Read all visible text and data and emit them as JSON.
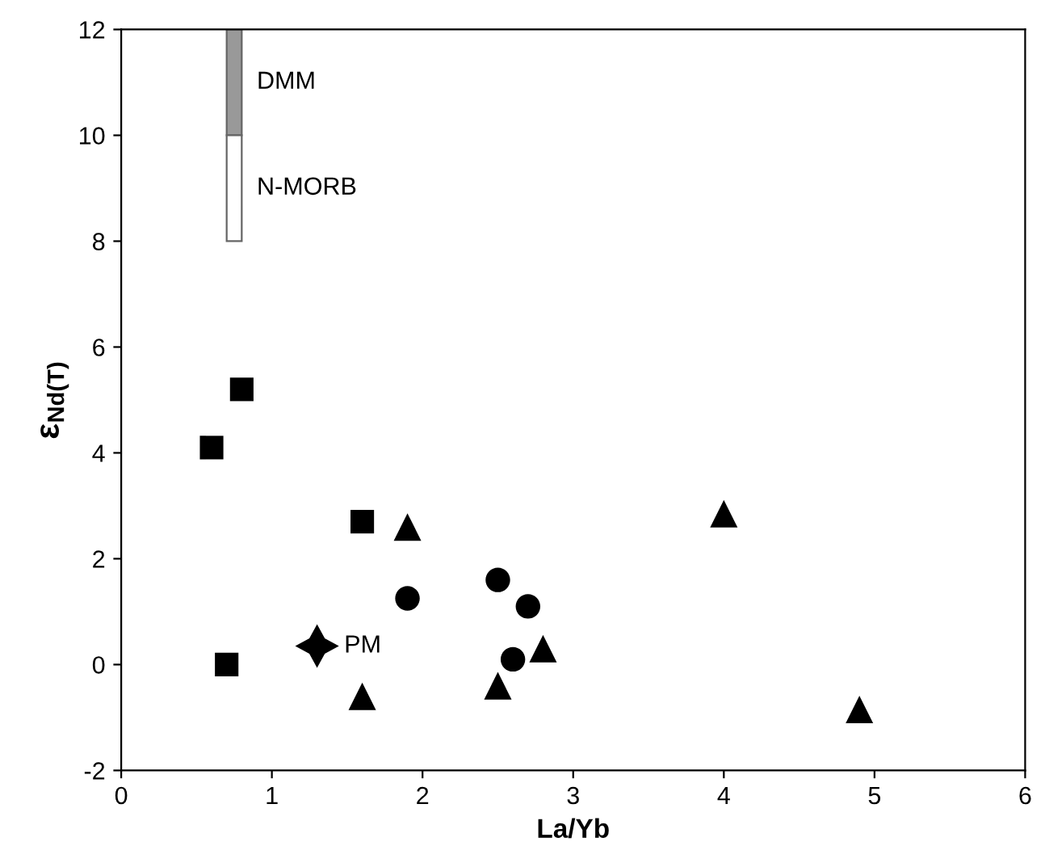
{
  "chart_data": {
    "type": "scatter",
    "xlabel": "La/Yb",
    "ylabel": "ε$_{Nd(T)}$",
    "xlim": [
      0,
      6
    ],
    "ylim": [
      -2,
      12
    ],
    "xticks": [
      0,
      1,
      2,
      3,
      4,
      5,
      6
    ],
    "yticks": [
      -2,
      0,
      2,
      4,
      6,
      8,
      10,
      12
    ],
    "grid": false,
    "legend": false,
    "series": [
      {
        "type": "bar",
        "name": "DMM",
        "color": "#999999",
        "x": [
          0.75
        ],
        "base": [
          10
        ],
        "values": [
          2
        ]
      },
      {
        "type": "bar",
        "name": "N-MORB",
        "color": "#ffffff",
        "x": [
          0.75
        ],
        "base": [
          8
        ],
        "values": [
          2
        ]
      },
      {
        "marker": "square",
        "color": "#000000",
        "x": [
          0.6,
          0.8,
          1.6,
          0.7
        ],
        "values": [
          4.1,
          5.2,
          2.7,
          0.0
        ]
      },
      {
        "marker": "circle",
        "color": "#000000",
        "x": [
          1.9,
          2.5,
          2.7,
          2.6
        ],
        "values": [
          1.25,
          1.6,
          1.1,
          0.1
        ]
      },
      {
        "marker": "triangle",
        "color": "#000000",
        "x": [
          1.6,
          1.9,
          2.5,
          2.8,
          4.0,
          4.9
        ],
        "values": [
          -0.6,
          2.6,
          -0.4,
          0.3,
          2.85,
          -0.85
        ]
      },
      {
        "marker": "star",
        "name": "PM",
        "color": "#000000",
        "x": [
          1.3
        ],
        "values": [
          0.35
        ]
      }
    ]
  }
}
